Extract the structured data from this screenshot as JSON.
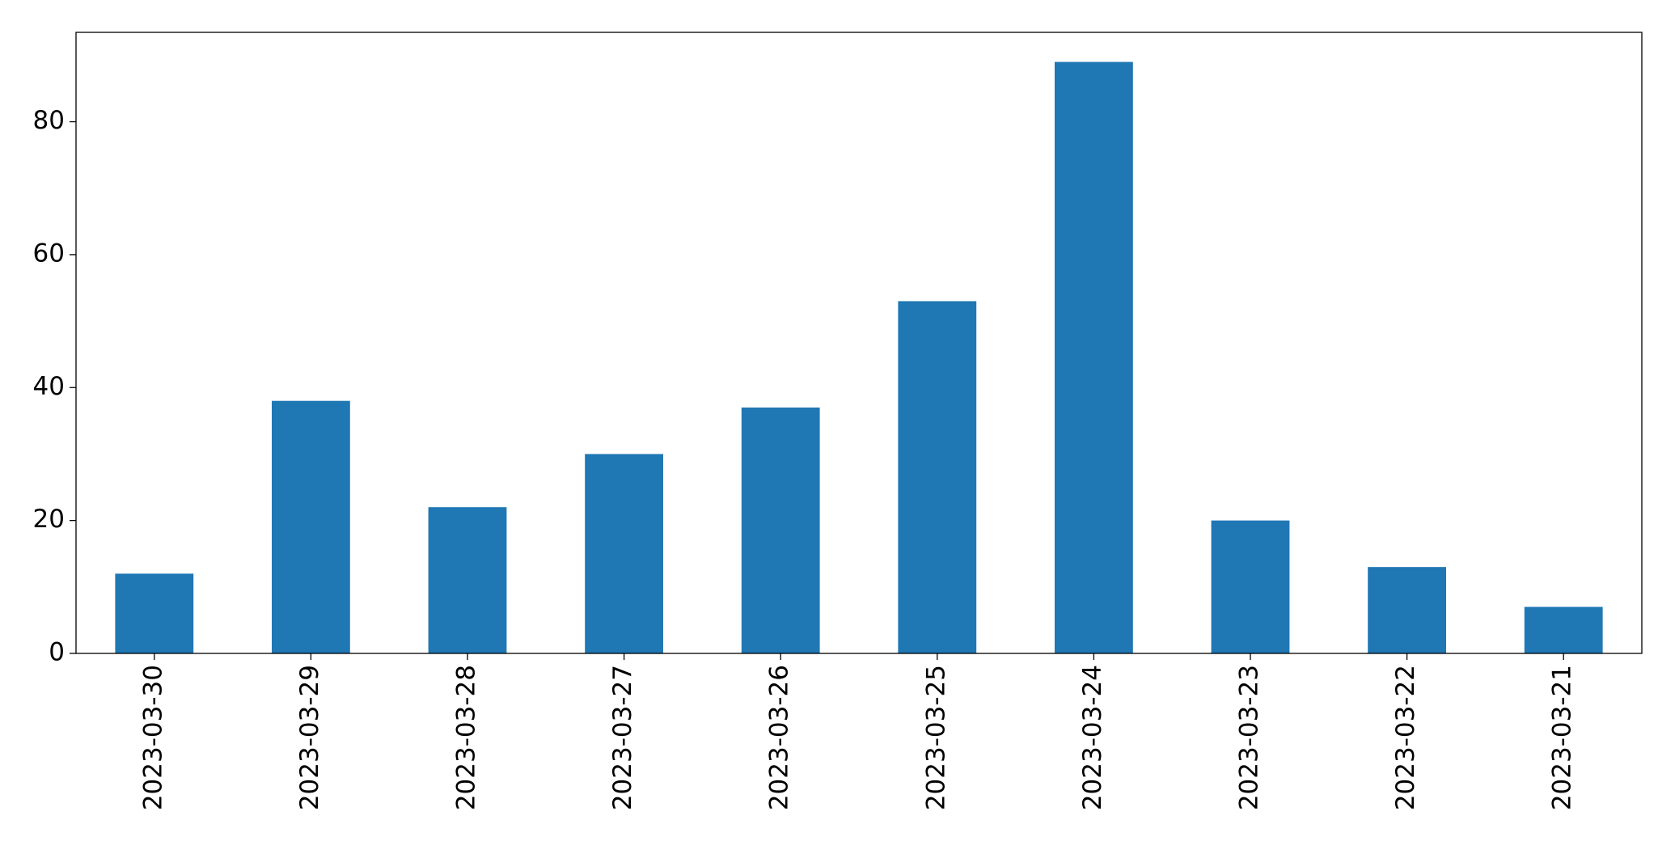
{
  "chart_data": {
    "type": "bar",
    "categories": [
      "2023-03-30",
      "2023-03-29",
      "2023-03-28",
      "2023-03-27",
      "2023-03-26",
      "2023-03-25",
      "2023-03-24",
      "2023-03-23",
      "2023-03-22",
      "2023-03-21"
    ],
    "values": [
      12,
      38,
      22,
      30,
      37,
      53,
      89,
      20,
      13,
      7
    ],
    "color": "#1f77b4",
    "ylim": [
      0,
      93.45
    ],
    "yticks": [
      0,
      20,
      40,
      60,
      80
    ],
    "grid": false
  }
}
